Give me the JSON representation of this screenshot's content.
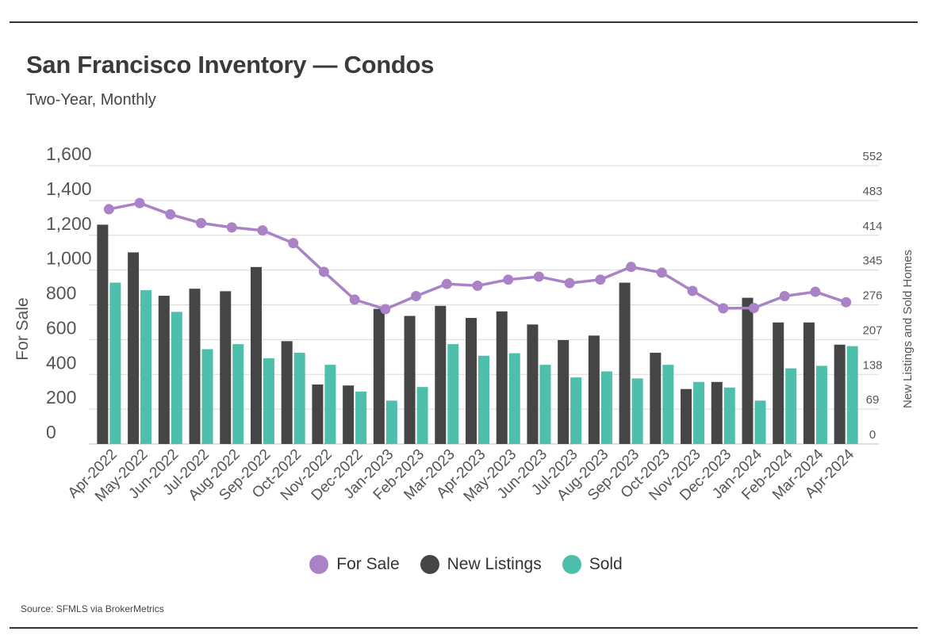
{
  "header": {
    "title": "San Francisco Inventory — Condos",
    "subtitle": "Two-Year, Monthly"
  },
  "chart_data": {
    "type": "bar",
    "title": "San Francisco Inventory — Condos",
    "subtitle": "Two-Year, Monthly",
    "ylabel": "For Sale",
    "y2label": "New Listings and Sold Homes",
    "ylim": [
      0,
      1600
    ],
    "yticks": [
      0,
      200,
      400,
      600,
      800,
      1000,
      1200,
      1400,
      1600
    ],
    "ytick_labels": [
      "0",
      "200",
      "400",
      "600",
      "800",
      "1,000",
      "1,200",
      "1,400",
      "1,600"
    ],
    "y2lim": [
      0,
      552
    ],
    "y2ticks": [
      0,
      69,
      138,
      207,
      276,
      345,
      414,
      483,
      552
    ],
    "grid": true,
    "legend_position": "bottom",
    "categories": [
      "Apr-2022",
      "May-2022",
      "Jun-2022",
      "Jul-2022",
      "Aug-2022",
      "Sep-2022",
      "Oct-2022",
      "Nov-2022",
      "Dec-2022",
      "Jan-2023",
      "Feb-2023",
      "Mar-2023",
      "Apr-2023",
      "May-2023",
      "Jun-2023",
      "Jul-2023",
      "Aug-2023",
      "Sep-2023",
      "Oct-2023",
      "Nov-2023",
      "Dec-2023",
      "Jan-2024",
      "Feb-2024",
      "Mar-2024",
      "Apr-2024"
    ],
    "series": [
      {
        "name": "For Sale",
        "type": "line",
        "axis": "left",
        "color": "#a983c6",
        "values": [
          1350,
          1385,
          1320,
          1270,
          1245,
          1228,
          1155,
          990,
          830,
          775,
          850,
          920,
          910,
          945,
          962,
          925,
          945,
          1018,
          985,
          880,
          780,
          782,
          850,
          875,
          815
        ]
      },
      {
        "name": "New Listings",
        "type": "bar",
        "axis": "right",
        "color": "#454545",
        "values": [
          435,
          380,
          294,
          308,
          303,
          351,
          204,
          118,
          116,
          268,
          254,
          274,
          250,
          263,
          237,
          206,
          215,
          320,
          181,
          109,
          123,
          290,
          241,
          241,
          197
        ]
      },
      {
        "name": "Sold",
        "type": "bar",
        "axis": "right",
        "color": "#4dbfaa",
        "values": [
          320,
          305,
          262,
          188,
          198,
          170,
          181,
          157,
          104,
          86,
          113,
          198,
          175,
          180,
          157,
          132,
          144,
          130,
          157,
          123,
          112,
          86,
          150,
          155,
          194
        ]
      }
    ]
  },
  "legend": {
    "items": [
      {
        "label": "For Sale",
        "color": "#a983c6"
      },
      {
        "label": "New Listings",
        "color": "#454545"
      },
      {
        "label": "Sold",
        "color": "#4dbfaa"
      }
    ]
  },
  "footer": {
    "source": "Source:  SFMLS via BrokerMetrics"
  }
}
